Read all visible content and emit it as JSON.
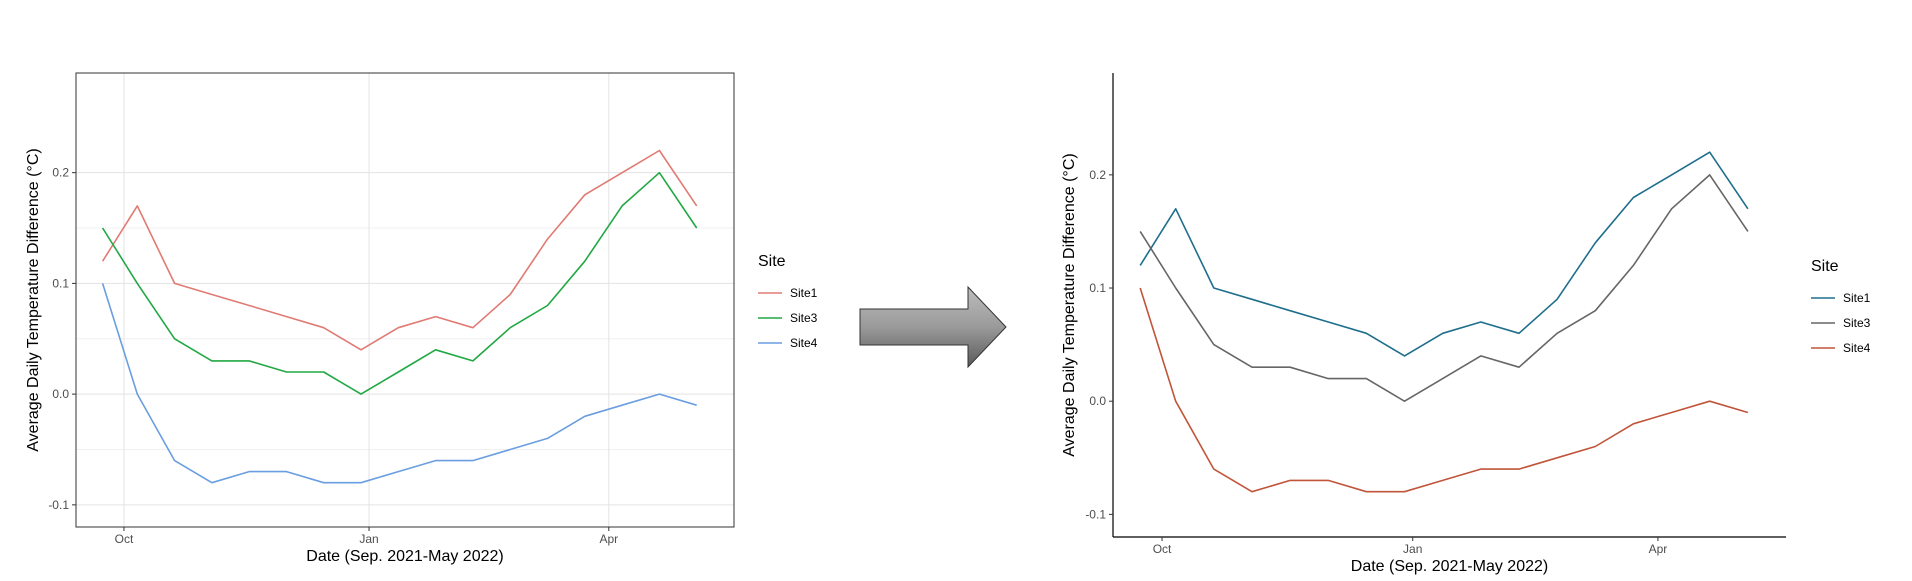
{
  "chart_data": [
    {
      "type": "line",
      "theme": "light grid with panel border",
      "xlabel": "Date (Sep. 2021-May 2022)",
      "ylabel": "Average Daily Temperature Difference (°C)",
      "x_ticks": [
        {
          "label": "Oct",
          "date": "2021-10-01"
        },
        {
          "label": "Jan",
          "date": "2022-01-01"
        },
        {
          "label": "Apr",
          "date": "2022-04-01"
        }
      ],
      "y_ticks": [
        -0.1,
        0.0,
        0.1,
        0.2
      ],
      "y_tick_labels": [
        "-0.1",
        "0.0",
        "0.1",
        "0.2"
      ],
      "xlim": [
        "2021-09-13",
        "2022-05-18"
      ],
      "ylim": [
        -0.12,
        0.29
      ],
      "grid": true,
      "legend": {
        "title": "Site",
        "position": "right"
      },
      "series": [
        {
          "name": "Site1",
          "color": "#e07b73",
          "x": [
            "2021-09-23",
            "2021-10-06",
            "2021-10-20",
            "2021-11-03",
            "2021-11-17",
            "2021-12-01",
            "2021-12-15",
            "2021-12-29",
            "2022-01-12",
            "2022-01-26",
            "2022-02-09",
            "2022-02-23",
            "2022-03-09",
            "2022-03-23",
            "2022-04-06",
            "2022-04-20",
            "2022-05-04"
          ],
          "values": [
            0.12,
            0.17,
            0.1,
            0.09,
            0.08,
            0.07,
            0.06,
            0.04,
            0.06,
            0.07,
            0.06,
            0.09,
            0.14,
            0.18,
            0.2,
            0.22,
            0.17
          ]
        },
        {
          "name": "Site3",
          "color": "#21a843",
          "x": [
            "2021-09-23",
            "2021-10-06",
            "2021-10-20",
            "2021-11-03",
            "2021-11-17",
            "2021-12-01",
            "2021-12-15",
            "2021-12-29",
            "2022-01-12",
            "2022-01-26",
            "2022-02-09",
            "2022-02-23",
            "2022-03-09",
            "2022-03-23",
            "2022-04-06",
            "2022-04-20",
            "2022-05-04"
          ],
          "values": [
            0.15,
            0.1,
            0.05,
            0.03,
            0.03,
            0.02,
            0.02,
            0.0,
            0.02,
            0.04,
            0.03,
            0.06,
            0.08,
            0.12,
            0.17,
            0.2,
            0.15
          ]
        },
        {
          "name": "Site4",
          "color": "#6a9ee0",
          "x": [
            "2021-09-23",
            "2021-10-06",
            "2021-10-20",
            "2021-11-03",
            "2021-11-17",
            "2021-12-01",
            "2021-12-15",
            "2021-12-29",
            "2022-01-12",
            "2022-01-26",
            "2022-02-09",
            "2022-02-23",
            "2022-03-09",
            "2022-03-23",
            "2022-04-06",
            "2022-04-20",
            "2022-05-04"
          ],
          "values": [
            0.1,
            0.0,
            -0.06,
            -0.08,
            -0.07,
            -0.07,
            -0.08,
            -0.08,
            -0.07,
            -0.06,
            -0.06,
            -0.05,
            -0.04,
            -0.02,
            -0.01,
            0.0,
            -0.01
          ]
        }
      ]
    },
    {
      "type": "line",
      "theme": "classic (axis lines, no grid)",
      "xlabel": "Date (Sep. 2021-May 2022)",
      "ylabel": "Average Daily Temperature Difference (°C)",
      "x_ticks": [
        {
          "label": "Oct",
          "date": "2021-10-01"
        },
        {
          "label": "Jan",
          "date": "2022-01-01"
        },
        {
          "label": "Apr",
          "date": "2022-04-01"
        }
      ],
      "y_ticks": [
        -0.1,
        0.0,
        0.1,
        0.2
      ],
      "y_tick_labels": [
        "-0.1",
        "0.0",
        "0.1",
        "0.2"
      ],
      "xlim": [
        "2021-09-13",
        "2022-05-18"
      ],
      "ylim": [
        -0.12,
        0.29
      ],
      "grid": false,
      "legend": {
        "title": "Site",
        "position": "right"
      },
      "series": [
        {
          "name": "Site1",
          "color": "#1f6e8c",
          "x": [
            "2021-09-23",
            "2021-10-06",
            "2021-10-20",
            "2021-11-03",
            "2021-11-17",
            "2021-12-01",
            "2021-12-15",
            "2021-12-29",
            "2022-01-12",
            "2022-01-26",
            "2022-02-09",
            "2022-02-23",
            "2022-03-09",
            "2022-03-23",
            "2022-04-06",
            "2022-04-20",
            "2022-05-04"
          ],
          "values": [
            0.12,
            0.17,
            0.1,
            0.09,
            0.08,
            0.07,
            0.06,
            0.04,
            0.06,
            0.07,
            0.06,
            0.09,
            0.14,
            0.18,
            0.2,
            0.22,
            0.17
          ]
        },
        {
          "name": "Site3",
          "color": "#666666",
          "x": [
            "2021-09-23",
            "2021-10-06",
            "2021-10-20",
            "2021-11-03",
            "2021-11-17",
            "2021-12-01",
            "2021-12-15",
            "2021-12-29",
            "2022-01-12",
            "2022-01-26",
            "2022-02-09",
            "2022-02-23",
            "2022-03-09",
            "2022-03-23",
            "2022-04-06",
            "2022-04-20",
            "2022-05-04"
          ],
          "values": [
            0.15,
            0.1,
            0.05,
            0.03,
            0.03,
            0.02,
            0.02,
            0.0,
            0.02,
            0.04,
            0.03,
            0.06,
            0.08,
            0.12,
            0.17,
            0.2,
            0.15
          ]
        },
        {
          "name": "Site4",
          "color": "#c0553a",
          "x": [
            "2021-09-23",
            "2021-10-06",
            "2021-10-20",
            "2021-11-03",
            "2021-11-17",
            "2021-12-01",
            "2021-12-15",
            "2021-12-29",
            "2022-01-12",
            "2022-01-26",
            "2022-02-09",
            "2022-02-23",
            "2022-03-09",
            "2022-03-23",
            "2022-04-06",
            "2022-04-20",
            "2022-05-04"
          ],
          "values": [
            0.1,
            0.0,
            -0.06,
            -0.08,
            -0.07,
            -0.07,
            -0.08,
            -0.08,
            -0.07,
            -0.06,
            -0.06,
            -0.05,
            -0.04,
            -0.02,
            -0.01,
            0.0,
            -0.01
          ]
        }
      ]
    }
  ],
  "arrow": {
    "icon": "right-arrow-icon"
  }
}
